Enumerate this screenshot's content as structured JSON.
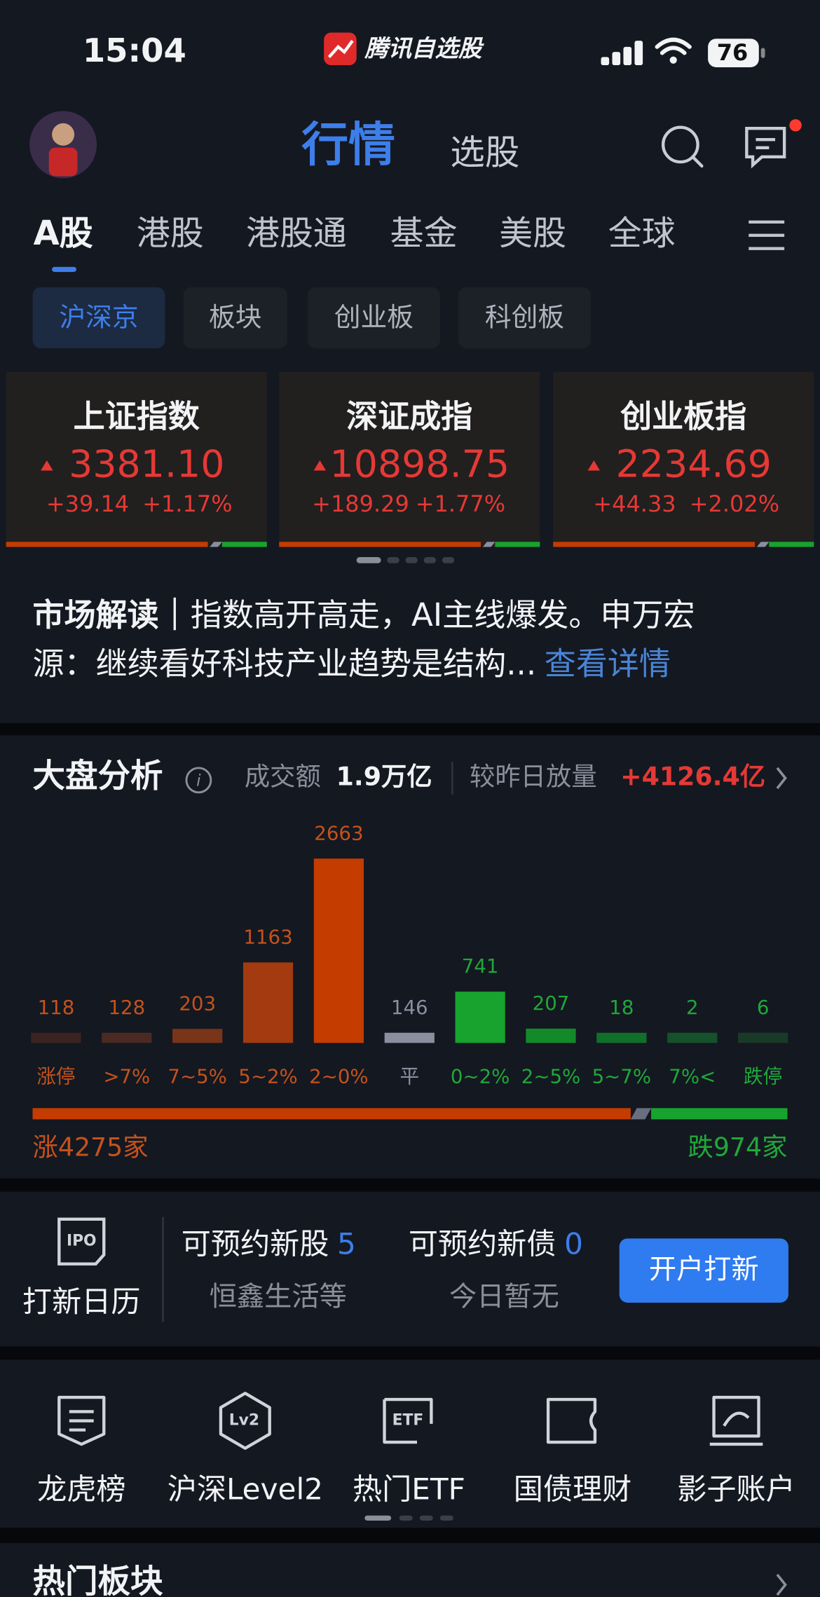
{
  "status_bar": {
    "time": "15:04",
    "app_name": "腾讯自选股",
    "battery": "76"
  },
  "header": {
    "tabs": [
      "行情",
      "选股"
    ]
  },
  "market_tabs": [
    "A股",
    "港股",
    "港股通",
    "基金",
    "美股",
    "全球"
  ],
  "sub_tabs": [
    "沪深京",
    "板块",
    "创业板",
    "科创板"
  ],
  "indices": [
    {
      "name": "上证指数",
      "price": "3381.10",
      "change": "+39.14",
      "change_pct": "+1.17%"
    },
    {
      "name": "深证成指",
      "price": "10898.75",
      "change": "+189.29",
      "change_pct": "+1.77%"
    },
    {
      "name": "创业板指",
      "price": "2234.69",
      "change": "+44.33",
      "change_pct": "+2.02%"
    }
  ],
  "news": {
    "tag": "市场解读",
    "separator": "｜",
    "line1": "指数高开高走，AI主线爆发。申万宏",
    "line2": "源：继续看好科技产业趋势是结构...",
    "link": "查看详情"
  },
  "market_analysis": {
    "title": "大盘分析",
    "turnover_label": "成交额",
    "turnover": "1.9万亿",
    "change_label": "较昨日放量",
    "change": "+4126.4亿",
    "rise": {
      "label": "涨",
      "count": 4275,
      "unit": "家"
    },
    "fall": {
      "label": "跌",
      "count": 974,
      "unit": "家"
    }
  },
  "chart_data": {
    "type": "bar",
    "categories": [
      "涨停",
      ">7%",
      "7~5%",
      "5~2%",
      "2~0%",
      "平",
      "0~2%",
      "2~5%",
      "5~7%",
      "7%<",
      "跌停"
    ],
    "values": [
      118,
      128,
      203,
      1163,
      2663,
      146,
      741,
      207,
      18,
      2,
      6
    ],
    "colors": [
      "#3a2320",
      "#4a2a22",
      "#7a3418",
      "#a33a10",
      "#c43c00",
      "#8a8fa0",
      "#17a32e",
      "#138a2a",
      "#10702a",
      "#15512a",
      "#1a3a28"
    ],
    "label_colors": [
      "#c4521c",
      "#c4521c",
      "#c4521c",
      "#c4521c",
      "#c4521c",
      "#8a8fa0",
      "#1fa83a",
      "#1fa83a",
      "#1fa83a",
      "#1fa83a",
      "#1fa83a"
    ]
  },
  "ipo": {
    "icon": "IPO",
    "calendar": "打新日历",
    "stocks_label": "可预约新股",
    "stocks_count": 5,
    "stocks_note": "恒鑫生活等",
    "bonds_label": "可预约新债",
    "bonds_count": 0,
    "bonds_note": "今日暂无",
    "button": "开户打新"
  },
  "shortcuts": [
    {
      "label": "龙虎榜"
    },
    {
      "label": "沪深Level2",
      "icon": "Lv2"
    },
    {
      "label": "热门ETF",
      "icon": "ETF"
    },
    {
      "label": "国债理财"
    },
    {
      "label": "影子账户"
    }
  ],
  "hot_sectors": {
    "title": "热门板块"
  }
}
